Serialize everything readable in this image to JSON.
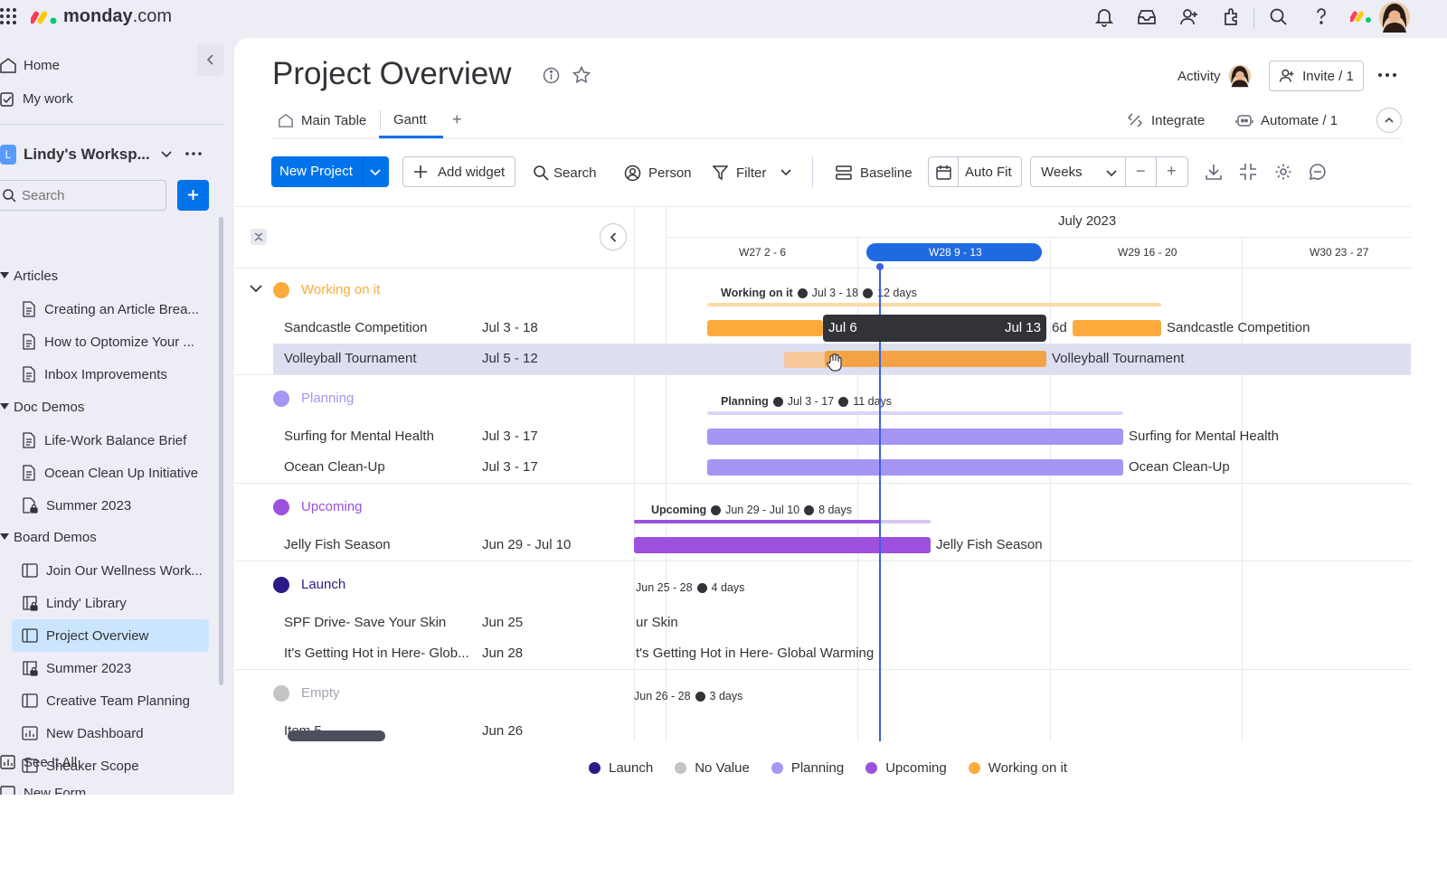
{
  "app": {
    "logo_text": "monday",
    "logo_suffix": ".com"
  },
  "sidebar": {
    "nav": [
      {
        "label": "Home"
      },
      {
        "label": "My work"
      }
    ],
    "workspace": {
      "initial": "L",
      "name": "Lindy's Worksp..."
    },
    "search_placeholder": "Search",
    "sections": [
      {
        "label": "Articles",
        "items": [
          "Creating an Article Brea...",
          "How to Optomize Your ...",
          "Inbox Improvements"
        ]
      },
      {
        "label": "Doc Demos",
        "items": [
          "Life-Work Balance Brief",
          "Ocean Clean Up Initiative",
          "Summer 2023"
        ]
      },
      {
        "label": "Board Demos",
        "items": [
          "Join Our Wellness Work...",
          "Lindy' Library",
          "Project Overview",
          "Summer 2023",
          "Creative Team Planning",
          "New Dashboard",
          "Sneaker Scope"
        ]
      }
    ],
    "see_all": "See It All",
    "cut_item": "New Form"
  },
  "board": {
    "title": "Project Overview",
    "activity_label": "Activity",
    "invite_label": "Invite / 1",
    "tabs": [
      {
        "label": "Main Table"
      },
      {
        "label": "Gantt"
      }
    ],
    "add_tab": "+",
    "integrate_label": "Integrate",
    "automate_label": "Automate / 1"
  },
  "toolbar": {
    "new_project": "New Project",
    "add_widget": "Add widget",
    "search": "Search",
    "person": "Person",
    "filter": "Filter",
    "baseline": "Baseline",
    "auto_fit": "Auto Fit",
    "weeks": "Weeks",
    "minus": "−",
    "plus": "+"
  },
  "timeline": {
    "month": "July 2023",
    "weeks": [
      "W27 2 - 6",
      "W28 9 - 13",
      "W29 16 - 20",
      "W30 23 - 27"
    ]
  },
  "groups": [
    {
      "name": "Working on it",
      "color": "#fdab3d",
      "summary": {
        "label": "Working on it",
        "range": "Jul 3 - 18",
        "days": "12 days"
      },
      "items": [
        {
          "name": "Sandcastle Competition",
          "dates": "Jul 3 - 18"
        },
        {
          "name": "Volleyball Tournament",
          "dates": "Jul 5 - 12"
        }
      ]
    },
    {
      "name": "Planning",
      "color": "#a695f5",
      "summary": {
        "label": "Planning",
        "range": "Jul 3 - 17",
        "days": "11 days"
      },
      "items": [
        {
          "name": "Surfing for Mental Health",
          "dates": "Jul 3 - 17"
        },
        {
          "name": "Ocean Clean-Up",
          "dates": "Jul 3 - 17"
        }
      ]
    },
    {
      "name": "Upcoming",
      "color": "#9d50dd",
      "summary": {
        "label": "Upcoming",
        "range": "Jun 29 - Jul 10",
        "days": "8 days"
      },
      "items": [
        {
          "name": "Jelly Fish Season",
          "dates": "Jun 29 - Jul 10"
        }
      ]
    },
    {
      "name": "Launch",
      "color": "#2b1a87",
      "summary": {
        "label": "",
        "range": "Jun 25 - 28",
        "days": "4 days"
      },
      "items": [
        {
          "name": "SPF Drive- Save Your Skin",
          "dates": "Jun 25"
        },
        {
          "name": "It's Getting Hot in Here- Glob...",
          "dates": "Jun 28"
        }
      ]
    },
    {
      "name": "Empty",
      "color": "#c4c4c4",
      "summary": {
        "label": "",
        "range": "Jun 26 - 28",
        "days": "3 days"
      },
      "items": [
        {
          "name": "Item 5",
          "dates": "Jun 26"
        }
      ]
    }
  ],
  "gantt_labels": {
    "sandcastle": "Sandcastle Competition",
    "volleyball": "Volleyball Tournament",
    "surfing": "Surfing for Mental Health",
    "ocean": "Ocean Clean-Up",
    "jelly": "Jelly Fish Season",
    "spf_cut": "ur Skin",
    "hot_cut": "t's Getting Hot in Here- Global Warming"
  },
  "drag_tooltip": {
    "start": "Jul 6",
    "end": "Jul 13",
    "duration": "6d"
  },
  "legend": [
    {
      "label": "Launch",
      "color": "#2b1a87"
    },
    {
      "label": "No Value",
      "color": "#c4c4c4"
    },
    {
      "label": "Planning",
      "color": "#a695f5"
    },
    {
      "label": "Upcoming",
      "color": "#9d50dd"
    },
    {
      "label": "Working on it",
      "color": "#fdab3d"
    }
  ],
  "colors": {
    "primary": "#0073ea",
    "selected": "#cce5ff",
    "today_line": "#3b5ee6"
  }
}
